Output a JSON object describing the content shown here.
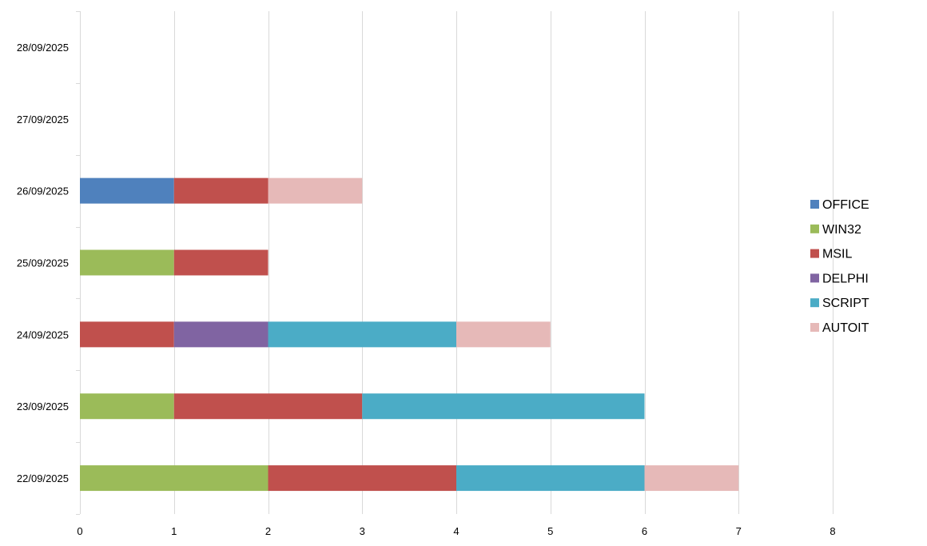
{
  "chart_data": {
    "type": "bar",
    "orientation": "horizontal",
    "stacked": true,
    "categories": [
      "22/09/2025",
      "23/09/2025",
      "24/09/2025",
      "25/09/2025",
      "26/09/2025",
      "27/09/2025",
      "28/09/2025"
    ],
    "series": [
      {
        "name": "OFFICE",
        "color": "#4f81bd",
        "values": [
          0,
          0,
          0,
          0,
          1,
          0,
          0
        ]
      },
      {
        "name": "WIN32",
        "color": "#9bbb59",
        "values": [
          2,
          1,
          0,
          1,
          0,
          0,
          0
        ]
      },
      {
        "name": "MSIL",
        "color": "#c0504d",
        "values": [
          2,
          2,
          1,
          1,
          1,
          0,
          0
        ]
      },
      {
        "name": "DELPHI",
        "color": "#8064a2",
        "values": [
          0,
          0,
          1,
          0,
          0,
          0,
          0
        ]
      },
      {
        "name": "SCRIPT",
        "color": "#4bacc6",
        "values": [
          2,
          3,
          2,
          0,
          0,
          0,
          0
        ]
      },
      {
        "name": "AUTOIT",
        "color": "#e6b9b8",
        "values": [
          1,
          0,
          1,
          0,
          1,
          0,
          0
        ]
      }
    ],
    "xlim": [
      0,
      8
    ],
    "xticks": [
      "0",
      "1",
      "2",
      "3",
      "4",
      "5",
      "6",
      "7",
      "8"
    ],
    "grid": "vertical",
    "legend": "right",
    "title": "",
    "xlabel": "",
    "ylabel": ""
  }
}
